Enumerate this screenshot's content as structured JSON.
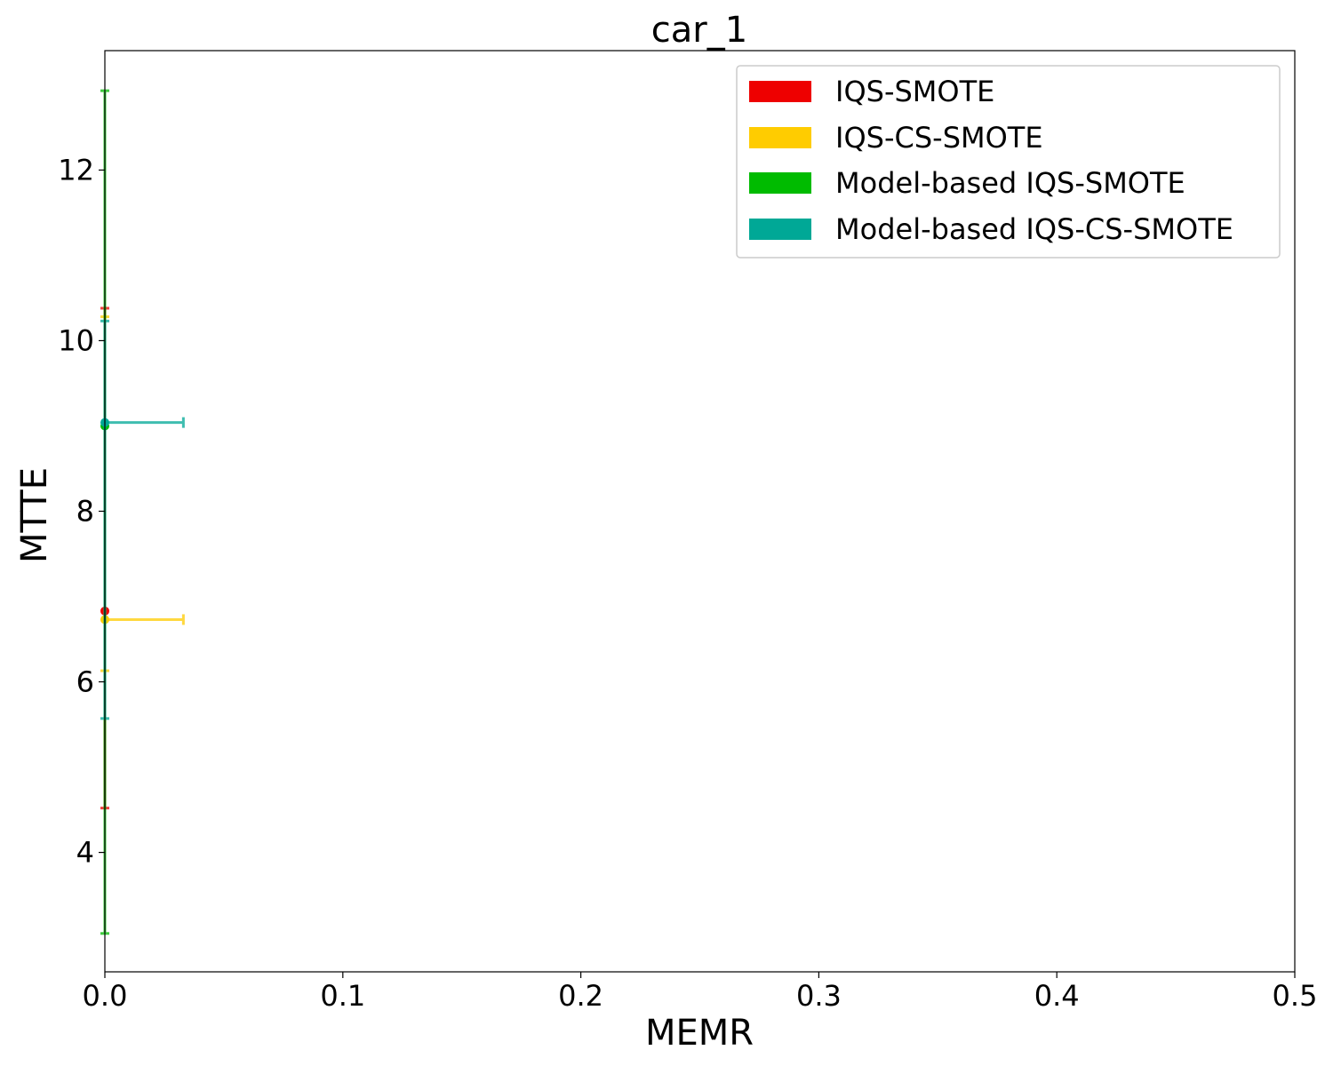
{
  "chart_data": {
    "type": "scatter",
    "title": "car_1",
    "xlabel": "MEMR",
    "ylabel": "MTTE",
    "xlim": [
      0,
      0.5
    ],
    "ylim": [
      2.6,
      13.4
    ],
    "xticks": [
      "0.0",
      "0.1",
      "0.2",
      "0.3",
      "0.4",
      "0.5"
    ],
    "yticks": [
      "4",
      "6",
      "8",
      "10",
      "12"
    ],
    "grid": false,
    "legend_position": "top-right",
    "series": [
      {
        "name": "IQS-SMOTE",
        "color": "#ee0000",
        "x": 0.0,
        "y": 6.83,
        "x_err": [
          0.0,
          0.0
        ],
        "y_err": [
          4.52,
          10.38
        ]
      },
      {
        "name": "IQS-CS-SMOTE",
        "color": "#ffcc00",
        "x": 0.0,
        "y": 6.73,
        "x_err": [
          0.0,
          0.033
        ],
        "y_err": [
          6.13,
          10.28
        ]
      },
      {
        "name": "Model-based IQS-SMOTE",
        "color": "#00bb00",
        "x": 0.0,
        "y": 9.0,
        "x_err": [
          0.0,
          0.0
        ],
        "y_err": [
          3.05,
          12.93
        ]
      },
      {
        "name": "Model-based IQS-CS-SMOTE",
        "color": "#00a896",
        "x": 0.0,
        "y": 9.04,
        "x_err": [
          0.0,
          0.033
        ],
        "y_err": [
          5.57,
          10.23
        ]
      }
    ]
  }
}
